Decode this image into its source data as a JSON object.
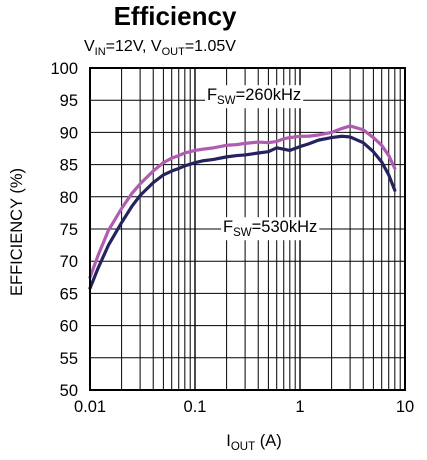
{
  "chart_data": {
    "type": "line",
    "title": "Efficiency",
    "subtitle": {
      "vin_main": "V",
      "vin_sub": "IN",
      "vin_rest": "=12V, ",
      "vout_main": "V",
      "vout_sub": "OUT",
      "vout_rest": "=1.05V"
    },
    "xlabel": {
      "main": "I",
      "sub": "OUT",
      "rest": " (A)"
    },
    "ylabel": "EFFICIENCY (%)",
    "x_scale": "log",
    "xlim": [
      0.01,
      10
    ],
    "ylim": [
      50,
      100
    ],
    "x_ticks": [
      0.01,
      0.1,
      1,
      10
    ],
    "x_tick_labels": [
      "0.01",
      "0.1",
      "1",
      "10"
    ],
    "y_ticks": [
      50,
      55,
      60,
      65,
      70,
      75,
      80,
      85,
      90,
      95,
      100
    ],
    "y_tick_labels": [
      "50",
      "55",
      "60",
      "65",
      "70",
      "75",
      "80",
      "85",
      "90",
      "95",
      "100"
    ],
    "grid": true,
    "series": [
      {
        "name": "F_SW=260kHz",
        "label": {
          "main": "F",
          "sub": "SW",
          "rest": "=260kHz"
        },
        "color": "#b05cb0",
        "x": [
          0.01,
          0.012,
          0.015,
          0.02,
          0.025,
          0.03,
          0.04,
          0.05,
          0.06,
          0.07,
          0.08,
          0.1,
          0.12,
          0.15,
          0.2,
          0.25,
          0.3,
          0.4,
          0.5,
          0.6,
          0.7,
          0.8,
          1.0,
          1.2,
          1.5,
          2.0,
          2.5,
          3.0,
          4.0,
          5.0,
          6.0,
          7.0,
          8.0
        ],
        "y": [
          67.5,
          71.0,
          74.8,
          78.2,
          80.5,
          82.0,
          84.0,
          85.3,
          86.0,
          86.4,
          86.8,
          87.2,
          87.4,
          87.6,
          88.0,
          88.1,
          88.3,
          88.5,
          88.4,
          88.6,
          89.0,
          89.2,
          89.4,
          89.4,
          89.6,
          90.0,
          90.6,
          91.0,
          90.4,
          89.2,
          88.0,
          86.4,
          84.4
        ]
      },
      {
        "name": "F_SW=530kHz",
        "label": {
          "main": "F",
          "sub": "SW",
          "rest": "=530kHz"
        },
        "color": "#25235e",
        "x": [
          0.01,
          0.012,
          0.015,
          0.02,
          0.025,
          0.03,
          0.04,
          0.05,
          0.06,
          0.07,
          0.08,
          0.1,
          0.12,
          0.15,
          0.2,
          0.25,
          0.3,
          0.4,
          0.5,
          0.6,
          0.7,
          0.8,
          1.0,
          1.2,
          1.5,
          2.0,
          2.5,
          3.0,
          4.0,
          5.0,
          6.0,
          7.0,
          8.0
        ],
        "y": [
          65.8,
          69.0,
          72.5,
          76.0,
          78.5,
          80.2,
          82.2,
          83.4,
          84.0,
          84.4,
          84.8,
          85.3,
          85.6,
          85.8,
          86.2,
          86.4,
          86.5,
          86.8,
          87.0,
          87.6,
          87.4,
          87.2,
          87.8,
          88.2,
          88.8,
          89.2,
          89.4,
          89.3,
          88.4,
          87.0,
          85.4,
          83.4,
          81.0
        ]
      }
    ]
  }
}
